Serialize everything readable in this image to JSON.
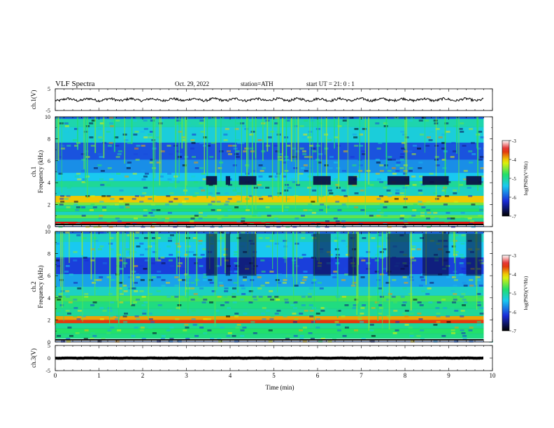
{
  "header": {
    "title": "VLF  Spectra",
    "date": "Oct. 29, 2022",
    "station": "station=ATH",
    "start": "start  UT  =    21: 0   : 1"
  },
  "colors": {
    "spec_low": "#000000",
    "spec_blue": "#1a2bd8",
    "spec_cyan": "#19c9f0",
    "spec_green": "#22e06a",
    "spec_yellow": "#f2f200",
    "spec_red": "#e01010",
    "spec_high": "#ffffff"
  },
  "chart_data": [
    {
      "type": "line",
      "panel": "ch1",
      "ylabel": "ch.1(V)",
      "ylim": [
        -5,
        5
      ],
      "yticks": [
        "5",
        "-5"
      ],
      "x_range_min": [
        0,
        9.8
      ],
      "description_values": {
        "level": 0,
        "amplitude": 1
      }
    },
    {
      "type": "heatmap",
      "panel": "ch1_spectrogram",
      "ylabel_lines": [
        "ch.1",
        "Frequency  (kHz)"
      ],
      "ylim": [
        0,
        10
      ],
      "yticks": [
        "0",
        "2",
        "4",
        "6",
        "8",
        "10"
      ],
      "x_range_min": [
        0,
        9.8
      ],
      "colorbar": {
        "label": "log(PSD)(V²/Hz)",
        "ticks": [
          "-3",
          "-4",
          "-5",
          "-6",
          "-7"
        ],
        "range": [
          -7,
          -3
        ]
      },
      "bands_khz": [
        {
          "freq": 0.1,
          "level": -3.0
        },
        {
          "freq": 0.3,
          "level": -3.5
        },
        {
          "freq": 0.6,
          "level": -5.0
        },
        {
          "freq": 0.9,
          "level": -4.6
        },
        {
          "freq": 1.2,
          "level": -5.2
        },
        {
          "freq": 1.5,
          "level": -4.8
        },
        {
          "freq": 1.8,
          "level": -5.0
        },
        {
          "freq": 2.1,
          "level": -4.5
        },
        {
          "freq": 2.3,
          "level": -4.0
        },
        {
          "freq": 3.3,
          "level": -5.2
        },
        {
          "freq": 3.9,
          "level": -5.0
        },
        {
          "freq": 4.4,
          "level": -5.4
        },
        {
          "freq": 5.4,
          "level": -5.7
        },
        {
          "freq": 6.8,
          "level": -6.0
        },
        {
          "freq": 8.5,
          "level": -5.3
        },
        {
          "freq": 9.6,
          "level": -5.1
        }
      ]
    },
    {
      "type": "heatmap",
      "panel": "ch2_spectrogram",
      "ylabel_lines": [
        "ch.2",
        "Frequency  (kHz)"
      ],
      "ylim": [
        0,
        10
      ],
      "yticks": [
        "0",
        "2",
        "4",
        "6",
        "8",
        "10"
      ],
      "x_range_min": [
        0,
        9.8
      ],
      "colorbar": {
        "label": "log(PSD)(V²/Hz)",
        "ticks": [
          "-3",
          "-4",
          "-5",
          "-6",
          "-7"
        ],
        "range": [
          -7,
          -3
        ]
      },
      "bands_khz": [
        {
          "freq": 0.1,
          "level": -3.0
        },
        {
          "freq": 0.5,
          "level": -4.9
        },
        {
          "freq": 1.0,
          "level": -4.8
        },
        {
          "freq": 1.5,
          "level": -5.0
        },
        {
          "freq": 1.9,
          "level": -3.6
        },
        {
          "freq": 2.1,
          "level": -3.9
        },
        {
          "freq": 2.6,
          "level": -5.0
        },
        {
          "freq": 3.4,
          "level": -4.9
        },
        {
          "freq": 3.9,
          "level": -4.7
        },
        {
          "freq": 4.5,
          "level": -5.2
        },
        {
          "freq": 5.5,
          "level": -5.6
        },
        {
          "freq": 6.8,
          "level": -6.1
        },
        {
          "freq": 8.5,
          "level": -5.4
        },
        {
          "freq": 9.6,
          "level": -5.2
        }
      ]
    },
    {
      "type": "line",
      "panel": "ch3",
      "ylabel": "ch.3(V)",
      "ylim": [
        -5,
        5
      ],
      "yticks": [
        "5",
        "0",
        "-5"
      ],
      "x_range_min": [
        0,
        9.8
      ],
      "description_values": {
        "level": 0,
        "amplitude": 0.1
      }
    }
  ],
  "x_axis": {
    "label": "Time  (min)",
    "ticks": [
      "0",
      "1",
      "2",
      "3",
      "4",
      "5",
      "6",
      "7",
      "8",
      "9",
      "10"
    ],
    "range": [
      0,
      10
    ]
  }
}
